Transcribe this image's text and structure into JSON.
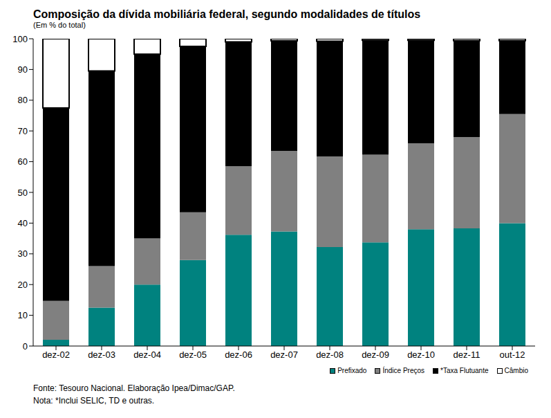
{
  "chart_data": {
    "type": "bar",
    "title": "Composição da dívida mobiliária federal, segundo modalidades de títulos",
    "subtitle": "(Em % do total)",
    "notes": [
      "Fonte: Tesouro Nacional. Elaboração Ipea/Dimac/GAP.",
      "Nota: *Inclui SELIC, TD e outras."
    ],
    "categories": [
      "dez-02",
      "dez-03",
      "dez-04",
      "dez-05",
      "dez-06",
      "dez-07",
      "dez-08",
      "dez-09",
      "dez-10",
      "dez-11",
      "out-12"
    ],
    "series": [
      {
        "name": "Prefixado",
        "color": "#00827f",
        "values": [
          2,
          12.5,
          20,
          28,
          36.2,
          37.3,
          32.2,
          33.7,
          38,
          38.3,
          40
        ]
      },
      {
        "name": "Índice Preços",
        "color": "#808080",
        "values": [
          12.7,
          13.5,
          15,
          15.5,
          22.3,
          26.2,
          29.5,
          28.6,
          28,
          29.7,
          35.5
        ]
      },
      {
        "name": "*Taxa Flutuante",
        "color": "#000000",
        "values": [
          62.8,
          63.5,
          60,
          54,
          40.5,
          35.8,
          37.5,
          37.2,
          33.5,
          31.4,
          23.9
        ]
      },
      {
        "name": "Câmbio",
        "color": "#ffffff",
        "values": [
          22.5,
          10.5,
          5,
          2.5,
          1,
          0.7,
          0.8,
          0.5,
          0.5,
          0.6,
          0.6
        ]
      }
    ],
    "stacked": true,
    "ylim": [
      0,
      100
    ],
    "yticks": [
      0,
      10,
      20,
      30,
      40,
      50,
      60,
      70,
      80,
      90,
      100
    ],
    "grid": false,
    "legend": "bottom right"
  }
}
